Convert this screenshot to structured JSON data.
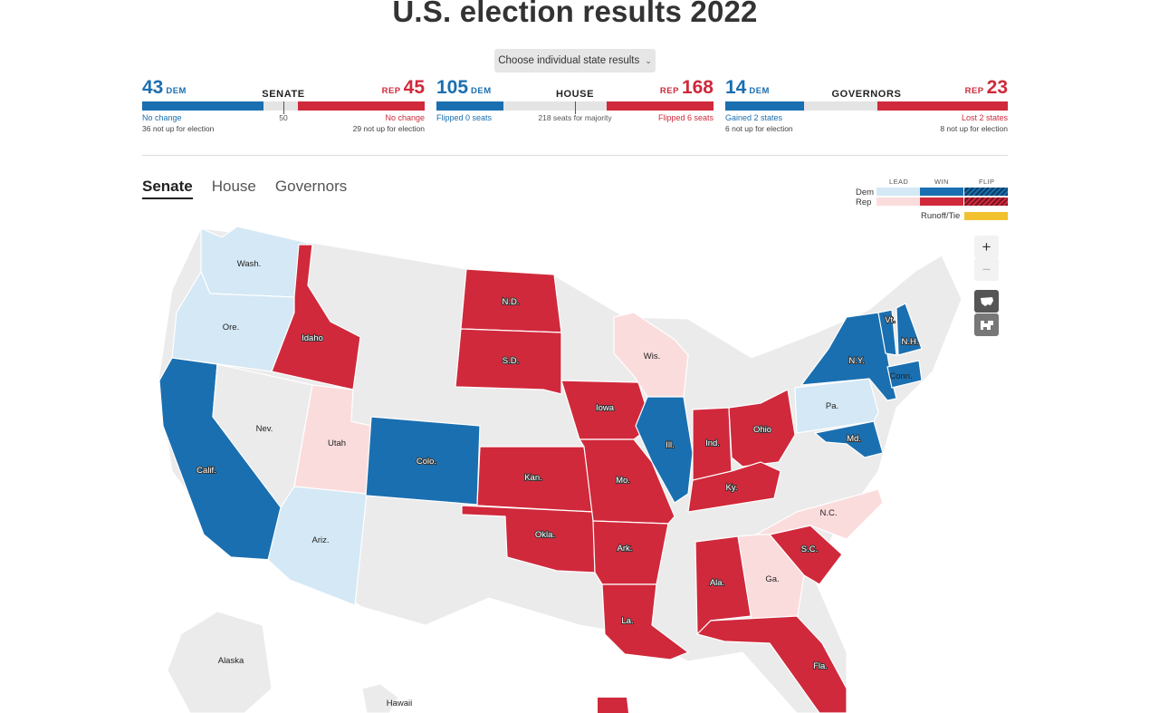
{
  "page": {
    "title": "U.S. election results 2022"
  },
  "state_selector": {
    "label": "Choose individual state results"
  },
  "races": {
    "senate": {
      "title": "SENATE",
      "dem": "43",
      "dem_tag": "DEM",
      "rep": "45",
      "rep_tag": "REP",
      "dem_note": "No change",
      "rep_note": "No change",
      "center_note": "50",
      "dem_sub": "36 not up for election",
      "rep_sub": "29 not up for election",
      "dem_fraction": 0.43,
      "rep_fraction": 0.45
    },
    "house": {
      "title": "HOUSE",
      "dem": "105",
      "dem_tag": "DEM",
      "rep": "168",
      "rep_tag": "REP",
      "dem_note": "Flipped 0 seats",
      "rep_note": "Flipped 6 seats",
      "center_note": "218 seats for majority",
      "dem_fraction": 0.241,
      "rep_fraction": 0.386
    },
    "governors": {
      "title": "GOVERNORS",
      "dem": "14",
      "dem_tag": "DEM",
      "rep": "23",
      "rep_tag": "REP",
      "dem_note": "Gained 2 states",
      "rep_note": "Lost 2 states",
      "dem_sub": "6 not up for election",
      "rep_sub": "8 not up for election",
      "dem_fraction": 0.28,
      "rep_fraction": 0.46
    }
  },
  "tabs": [
    {
      "label": "Senate",
      "active": true
    },
    {
      "label": "House",
      "active": false
    },
    {
      "label": "Governors",
      "active": false
    }
  ],
  "legend": {
    "col_lead": "LEAD",
    "col_win": "WIN",
    "col_flip": "FLIP",
    "dem": "Dem",
    "rep": "Rep",
    "runoff": "Runoff/Tie"
  },
  "colors": {
    "dem_win": "#1a6fb0",
    "dem_lead": "#d4e8f5",
    "rep_win": "#d0293b",
    "rep_lead": "#fbdcdd",
    "none": "#ebebeb",
    "runoff": "#f2c12e"
  },
  "zoom": {
    "in": "+",
    "out": "−"
  },
  "icons": {
    "zoom_in": "plus-icon",
    "zoom_out": "minus-icon",
    "us_view": "us-map-icon",
    "alt_view": "cartogram-icon"
  },
  "map": {
    "states": [
      {
        "id": "wa",
        "label": "Wash.",
        "status": "dem_lead"
      },
      {
        "id": "or",
        "label": "Ore.",
        "status": "dem_lead"
      },
      {
        "id": "ca",
        "label": "Calif.",
        "status": "dem_win"
      },
      {
        "id": "id",
        "label": "Idaho",
        "status": "rep_win"
      },
      {
        "id": "nv",
        "label": "Nev.",
        "status": "none"
      },
      {
        "id": "ut",
        "label": "Utah",
        "status": "rep_lead"
      },
      {
        "id": "az",
        "label": "Ariz.",
        "status": "dem_lead"
      },
      {
        "id": "co",
        "label": "Colo.",
        "status": "dem_win"
      },
      {
        "id": "nd",
        "label": "N.D.",
        "status": "rep_win"
      },
      {
        "id": "sd",
        "label": "S.D.",
        "status": "rep_win"
      },
      {
        "id": "ks",
        "label": "Kan.",
        "status": "rep_win"
      },
      {
        "id": "ok",
        "label": "Okla.",
        "status": "rep_win"
      },
      {
        "id": "ia",
        "label": "Iowa",
        "status": "rep_win"
      },
      {
        "id": "mo",
        "label": "Mo.",
        "status": "rep_win"
      },
      {
        "id": "ar",
        "label": "Ark.",
        "status": "rep_win"
      },
      {
        "id": "la",
        "label": "La.",
        "status": "rep_win"
      },
      {
        "id": "wi",
        "label": "Wis.",
        "status": "rep_lead"
      },
      {
        "id": "il",
        "label": "Ill.",
        "status": "dem_win"
      },
      {
        "id": "in",
        "label": "Ind.",
        "status": "rep_win"
      },
      {
        "id": "oh",
        "label": "Ohio",
        "status": "rep_win"
      },
      {
        "id": "ky",
        "label": "Ky.",
        "status": "rep_win"
      },
      {
        "id": "al",
        "label": "Ala.",
        "status": "rep_win"
      },
      {
        "id": "ga",
        "label": "Ga.",
        "status": "rep_lead"
      },
      {
        "id": "fl",
        "label": "Fla.",
        "status": "rep_win"
      },
      {
        "id": "sc",
        "label": "S.C.",
        "status": "rep_win"
      },
      {
        "id": "nc",
        "label": "N.C.",
        "status": "rep_lead"
      },
      {
        "id": "pa",
        "label": "Pa.",
        "status": "dem_lead"
      },
      {
        "id": "md",
        "label": "Md.",
        "status": "dem_win"
      },
      {
        "id": "ny",
        "label": "N.Y.",
        "status": "dem_win"
      },
      {
        "id": "vt",
        "label": "Vt.",
        "status": "dem_win"
      },
      {
        "id": "nh",
        "label": "N.H.",
        "status": "dem_win"
      },
      {
        "id": "ct",
        "label": "Conn.",
        "status": "dem_win"
      },
      {
        "id": "ak",
        "label": "Alaska",
        "status": "none"
      },
      {
        "id": "hi",
        "label": "Hawaii",
        "status": "none"
      }
    ]
  }
}
